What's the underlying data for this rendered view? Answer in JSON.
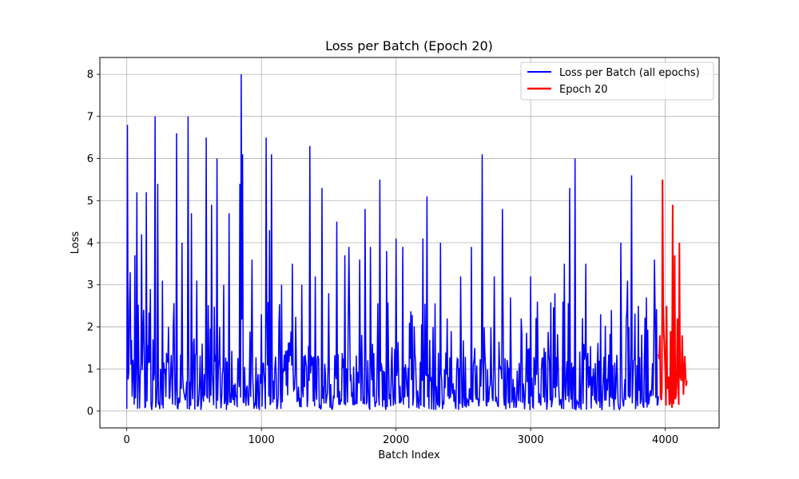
{
  "chart_data": {
    "type": "line",
    "title": "Loss per Batch (Epoch 20)",
    "xlabel": "Batch Index",
    "ylabel": "Loss",
    "xlim": [
      -200,
      4400
    ],
    "ylim": [
      -0.4,
      8.4
    ],
    "xticks": [
      0,
      1000,
      2000,
      3000,
      4000
    ],
    "yticks": [
      0,
      1,
      2,
      3,
      4,
      5,
      6,
      7,
      8
    ],
    "grid": true,
    "legend_position": "top-right",
    "num_batches": 4160,
    "epoch20_start": 3950,
    "series": [
      {
        "name": "Loss per Batch (all epochs)",
        "color": "#0000ff",
        "spikes": [
          [
            5,
            6.8
          ],
          [
            25,
            3.3
          ],
          [
            60,
            3.7
          ],
          [
            75,
            5.2
          ],
          [
            110,
            4.2
          ],
          [
            145,
            5.2
          ],
          [
            175,
            2.9
          ],
          [
            210,
            7.0
          ],
          [
            230,
            5.4
          ],
          [
            265,
            3.1
          ],
          [
            310,
            2.0
          ],
          [
            370,
            6.6
          ],
          [
            410,
            4.0
          ],
          [
            455,
            7.0
          ],
          [
            480,
            4.7
          ],
          [
            520,
            3.1
          ],
          [
            590,
            6.5
          ],
          [
            630,
            4.9
          ],
          [
            670,
            6.0
          ],
          [
            720,
            3.0
          ],
          [
            760,
            4.7
          ],
          [
            840,
            5.4
          ],
          [
            850,
            8.0
          ],
          [
            860,
            6.1
          ],
          [
            930,
            3.6
          ],
          [
            1000,
            2.3
          ],
          [
            1035,
            6.5
          ],
          [
            1060,
            4.3
          ],
          [
            1075,
            6.1
          ],
          [
            1150,
            3.0
          ],
          [
            1230,
            3.5
          ],
          [
            1300,
            3.0
          ],
          [
            1360,
            6.3
          ],
          [
            1400,
            3.2
          ],
          [
            1450,
            5.3
          ],
          [
            1500,
            2.8
          ],
          [
            1560,
            4.5
          ],
          [
            1620,
            3.7
          ],
          [
            1650,
            3.9
          ],
          [
            1730,
            3.6
          ],
          [
            1770,
            4.8
          ],
          [
            1810,
            3.9
          ],
          [
            1880,
            5.5
          ],
          [
            1930,
            3.8
          ],
          [
            2000,
            4.1
          ],
          [
            2050,
            3.9
          ],
          [
            2100,
            2.1
          ],
          [
            2200,
            4.1
          ],
          [
            2230,
            5.1
          ],
          [
            2330,
            4.0
          ],
          [
            2410,
            1.9
          ],
          [
            2480,
            3.2
          ],
          [
            2560,
            3.9
          ],
          [
            2640,
            6.1
          ],
          [
            2730,
            3.2
          ],
          [
            2790,
            4.8
          ],
          [
            2850,
            2.7
          ],
          [
            2930,
            2.2
          ],
          [
            3000,
            3.2
          ],
          [
            3050,
            2.6
          ],
          [
            3100,
            1.5
          ],
          [
            3180,
            2.8
          ],
          [
            3250,
            3.5
          ],
          [
            3290,
            5.3
          ],
          [
            3330,
            6.0
          ],
          [
            3410,
            3.5
          ],
          [
            3520,
            2.3
          ],
          [
            3600,
            2.4
          ],
          [
            3670,
            4.0
          ],
          [
            3720,
            3.1
          ],
          [
            3750,
            5.6
          ],
          [
            3800,
            2.5
          ],
          [
            3860,
            2.7
          ],
          [
            3920,
            3.6
          ]
        ]
      },
      {
        "name": "Epoch 20",
        "color": "#ff0000",
        "spikes": [
          [
            3960,
            1.8
          ],
          [
            3980,
            5.5
          ],
          [
            4010,
            2.5
          ],
          [
            4040,
            1.9
          ],
          [
            4055,
            4.9
          ],
          [
            4070,
            3.7
          ],
          [
            4090,
            2.2
          ],
          [
            4105,
            4.0
          ],
          [
            4125,
            1.8
          ],
          [
            4140,
            0.9
          ],
          [
            4155,
            0.6
          ]
        ]
      }
    ]
  }
}
